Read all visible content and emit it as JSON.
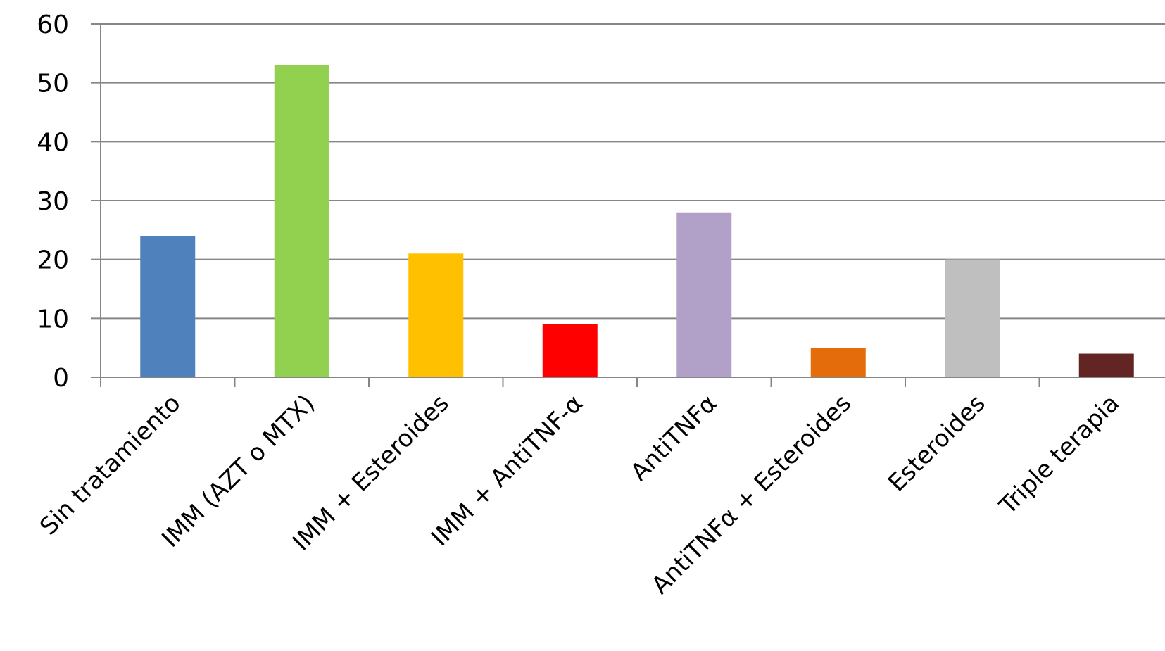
{
  "chart_data": {
    "type": "bar",
    "title": "",
    "xlabel": "",
    "ylabel": "",
    "ylim": [
      0,
      60
    ],
    "yticks": [
      "0",
      "10",
      "20",
      "30",
      "40",
      "50",
      "60"
    ],
    "grid": true,
    "legend": "none",
    "categories": [
      "Sin tratamiento",
      "IMM (AZT o MTX)",
      "IMM + Esteroides",
      "IMM + AntiTNF-α",
      "AntiTNFα",
      "AntiTNFα + Esteroides",
      "Esteroides",
      "Triple terapia"
    ],
    "values": [
      24,
      53,
      21,
      9,
      28,
      5,
      20,
      4
    ],
    "colors": [
      "#4F81BD",
      "#92D050",
      "#FFC000",
      "#FF0000",
      "#B1A0C7",
      "#E46C0A",
      "#BFBFBF",
      "#632523"
    ]
  }
}
